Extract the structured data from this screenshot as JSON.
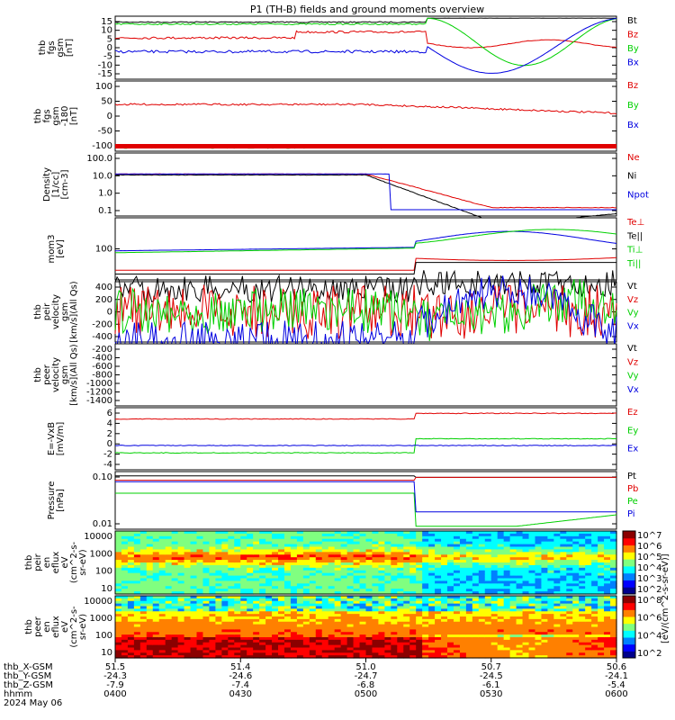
{
  "title": "P1 (TH-B) fields and ground moments overview",
  "colors": {
    "black": "#000000",
    "red": "#e00000",
    "green": "#00d000",
    "blue": "#0000e0"
  },
  "chart_data": {
    "type": "line",
    "x_time_ticks": [
      "0400",
      "0430",
      "0500",
      "0530",
      "0600"
    ],
    "x_tick_rows": [
      {
        "label": "thb_X-GSM",
        "values": [
          "51.5",
          "51.4",
          "51.0",
          "50.7",
          "50.6"
        ]
      },
      {
        "label": "thb_Y-GSM",
        "values": [
          "-24.3",
          "-24.6",
          "-24.7",
          "-24.5",
          "-24.1"
        ]
      },
      {
        "label": "thb_Z-GSM",
        "values": [
          "-7.9",
          "-7.4",
          "-6.8",
          "-6.1",
          "-5.4"
        ]
      },
      {
        "label": "hhmm",
        "values": [
          "0400",
          "0430",
          "0500",
          "0530",
          "0600"
        ]
      }
    ],
    "date": "2024 May 06",
    "panels": [
      {
        "id": "fgs",
        "ylabel": [
          "thb",
          "fgs",
          "gsm",
          "[nT]"
        ],
        "ticks": [
          "15",
          "10",
          "5",
          "0",
          "-5",
          "-10",
          "-15"
        ],
        "legend": [
          {
            "name": "Bt",
            "color": "black"
          },
          {
            "name": "Bz",
            "color": "red"
          },
          {
            "name": "By",
            "color": "green"
          },
          {
            "name": "Bx",
            "color": "blue"
          }
        ]
      },
      {
        "id": "fgs2",
        "ylabel": [
          "thb",
          "fgs",
          "gsm",
          "-180",
          "[nT]"
        ],
        "ticks": [
          "100",
          "50",
          "0",
          "-50",
          "-100"
        ],
        "legend": [
          {
            "name": "Bz",
            "color": "red"
          },
          {
            "name": "By",
            "color": "green"
          },
          {
            "name": "Bx",
            "color": "blue"
          }
        ]
      },
      {
        "id": "density",
        "ylabel": [
          "Density",
          "[1/cc]",
          "[cm-3]"
        ],
        "ticks": [
          "100.0",
          "10.0",
          "1.0",
          "0.1"
        ],
        "legend": [
          {
            "name": "Ne",
            "color": "red"
          },
          {
            "name": "Ni",
            "color": "black"
          },
          {
            "name": "Npot",
            "color": "blue"
          }
        ]
      },
      {
        "id": "temp",
        "ylabel": [
          "mom3",
          "[eV]"
        ],
        "ticks": [
          "100"
        ],
        "legend": [
          {
            "name": "Te⊥",
            "color": "red"
          },
          {
            "name": "Te||",
            "color": "black"
          },
          {
            "name": "Ti⊥",
            "color": "green"
          },
          {
            "name": "Ti||",
            "color": "green"
          }
        ]
      },
      {
        "id": "veli",
        "ylabel": [
          "thb",
          "peir",
          "velocity",
          "gsm",
          "[km/s](All Qs)"
        ],
        "ticks": [
          "400",
          "200",
          "0",
          "-200",
          "-400"
        ],
        "legend": [
          {
            "name": "Vt",
            "color": "black"
          },
          {
            "name": "Vz",
            "color": "red"
          },
          {
            "name": "Vy",
            "color": "green"
          },
          {
            "name": "Vx",
            "color": "blue"
          }
        ]
      },
      {
        "id": "vele",
        "ylabel": [
          "thb",
          "peer",
          "velocity",
          "gsm",
          "[km/s](All Qs)"
        ],
        "ticks": [
          "-200",
          "-400",
          "-600",
          "-800",
          "-1000",
          "-1200",
          "-1400"
        ],
        "legend": [
          {
            "name": "Vt",
            "color": "black"
          },
          {
            "name": "Vz",
            "color": "red"
          },
          {
            "name": "Vy",
            "color": "green"
          },
          {
            "name": "Vx",
            "color": "blue"
          }
        ]
      },
      {
        "id": "efield",
        "ylabel": [
          "E=-VxB",
          "[mV/m]"
        ],
        "ticks": [
          "6",
          "4",
          "2",
          "0",
          "-2",
          "-4"
        ],
        "legend": [
          {
            "name": "Ez",
            "color": "red"
          },
          {
            "name": "Ey",
            "color": "green"
          },
          {
            "name": "Ex",
            "color": "blue"
          }
        ]
      },
      {
        "id": "pressure",
        "ylabel": [
          "Pressure",
          "[nPa]"
        ],
        "ticks": [
          "0.10",
          "0.01"
        ],
        "legend": [
          {
            "name": "Pt",
            "color": "black"
          },
          {
            "name": "Pb",
            "color": "red"
          },
          {
            "name": "Pe",
            "color": "green"
          },
          {
            "name": "Pi",
            "color": "blue"
          }
        ]
      },
      {
        "id": "ispec",
        "ylabel": [
          "thb",
          "peir",
          "en",
          "eflux",
          "eV",
          "(cm^2-s-",
          "sr-eV)"
        ],
        "ticks": [
          "10000",
          "1000",
          "100",
          "10"
        ],
        "cbar_ticks": [
          "10^7",
          "10^6",
          "10^5",
          "10^4",
          "10^3",
          "10^2"
        ]
      },
      {
        "id": "espec",
        "ylabel": [
          "thb",
          "peer",
          "en",
          "eflux",
          "eV",
          "(cm^2-s-",
          "sr-eV)"
        ],
        "ticks": [
          "10000",
          "1000",
          "100",
          "10"
        ],
        "cbar_ticks": [
          "10^8",
          "10^6",
          "10^4",
          "10^2"
        ]
      }
    ],
    "cbar_label_top": "[eV/(cm^2-s-sr-eV)] (All Qs)",
    "cbar_label_bottom": "[eV/(cm^2-s-sr-eV)]"
  }
}
